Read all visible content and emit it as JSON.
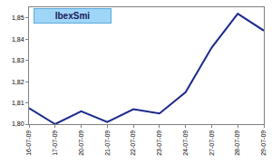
{
  "chart_data": {
    "type": "line",
    "title": "IbexSmi",
    "categories": [
      "16-07-09",
      "17-07-09",
      "20-07-09",
      "21-07-09",
      "22-07-09",
      "23-07-09",
      "24-07-09",
      "27-07-09",
      "28-07-09",
      "29-07-09"
    ],
    "values": [
      1.8075,
      1.8,
      1.806,
      1.801,
      1.807,
      1.805,
      1.815,
      1.836,
      1.852,
      1.844
    ],
    "color": "#1c2a8c",
    "ylim": [
      1.8,
      1.855
    ],
    "yticks": [
      {
        "value": 1.8,
        "label": "1,80"
      },
      {
        "value": 1.81,
        "label": "1,81"
      },
      {
        "value": 1.82,
        "label": "1,82"
      },
      {
        "value": 1.83,
        "label": "1,83"
      },
      {
        "value": 1.84,
        "label": "1,84"
      },
      {
        "value": 1.85,
        "label": "1,85"
      }
    ],
    "grid": false
  }
}
